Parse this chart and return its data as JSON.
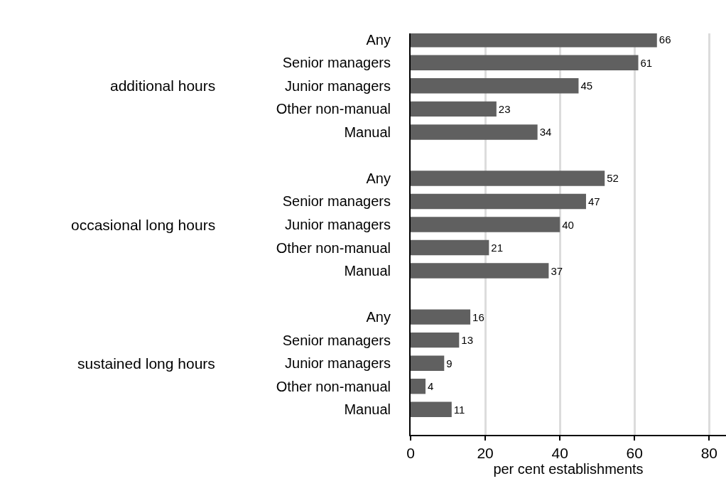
{
  "chart_data": {
    "type": "bar",
    "orientation": "horizontal",
    "categories": [
      "Any",
      "Senior managers",
      "Junior managers",
      "Other non-manual",
      "Manual",
      null,
      "Any",
      "Senior managers",
      "Junior managers",
      "Other non-manual",
      "Manual",
      null,
      "Any",
      "Senior managers",
      "Junior managers",
      "Other non-manual",
      "Manual"
    ],
    "values": [
      66,
      61,
      45,
      23,
      34,
      null,
      52,
      47,
      40,
      21,
      37,
      null,
      16,
      13,
      9,
      4,
      11
    ],
    "color": "#606060",
    "xlabel": "per cent establishments",
    "annotations": [
      "additional hours",
      "occasional long hours",
      "sustained long hours"
    ],
    "xlim": [
      0,
      84.5
    ],
    "xticks": [
      0,
      20,
      40,
      60,
      80
    ],
    "grid": "x",
    "data_labels": true
  }
}
